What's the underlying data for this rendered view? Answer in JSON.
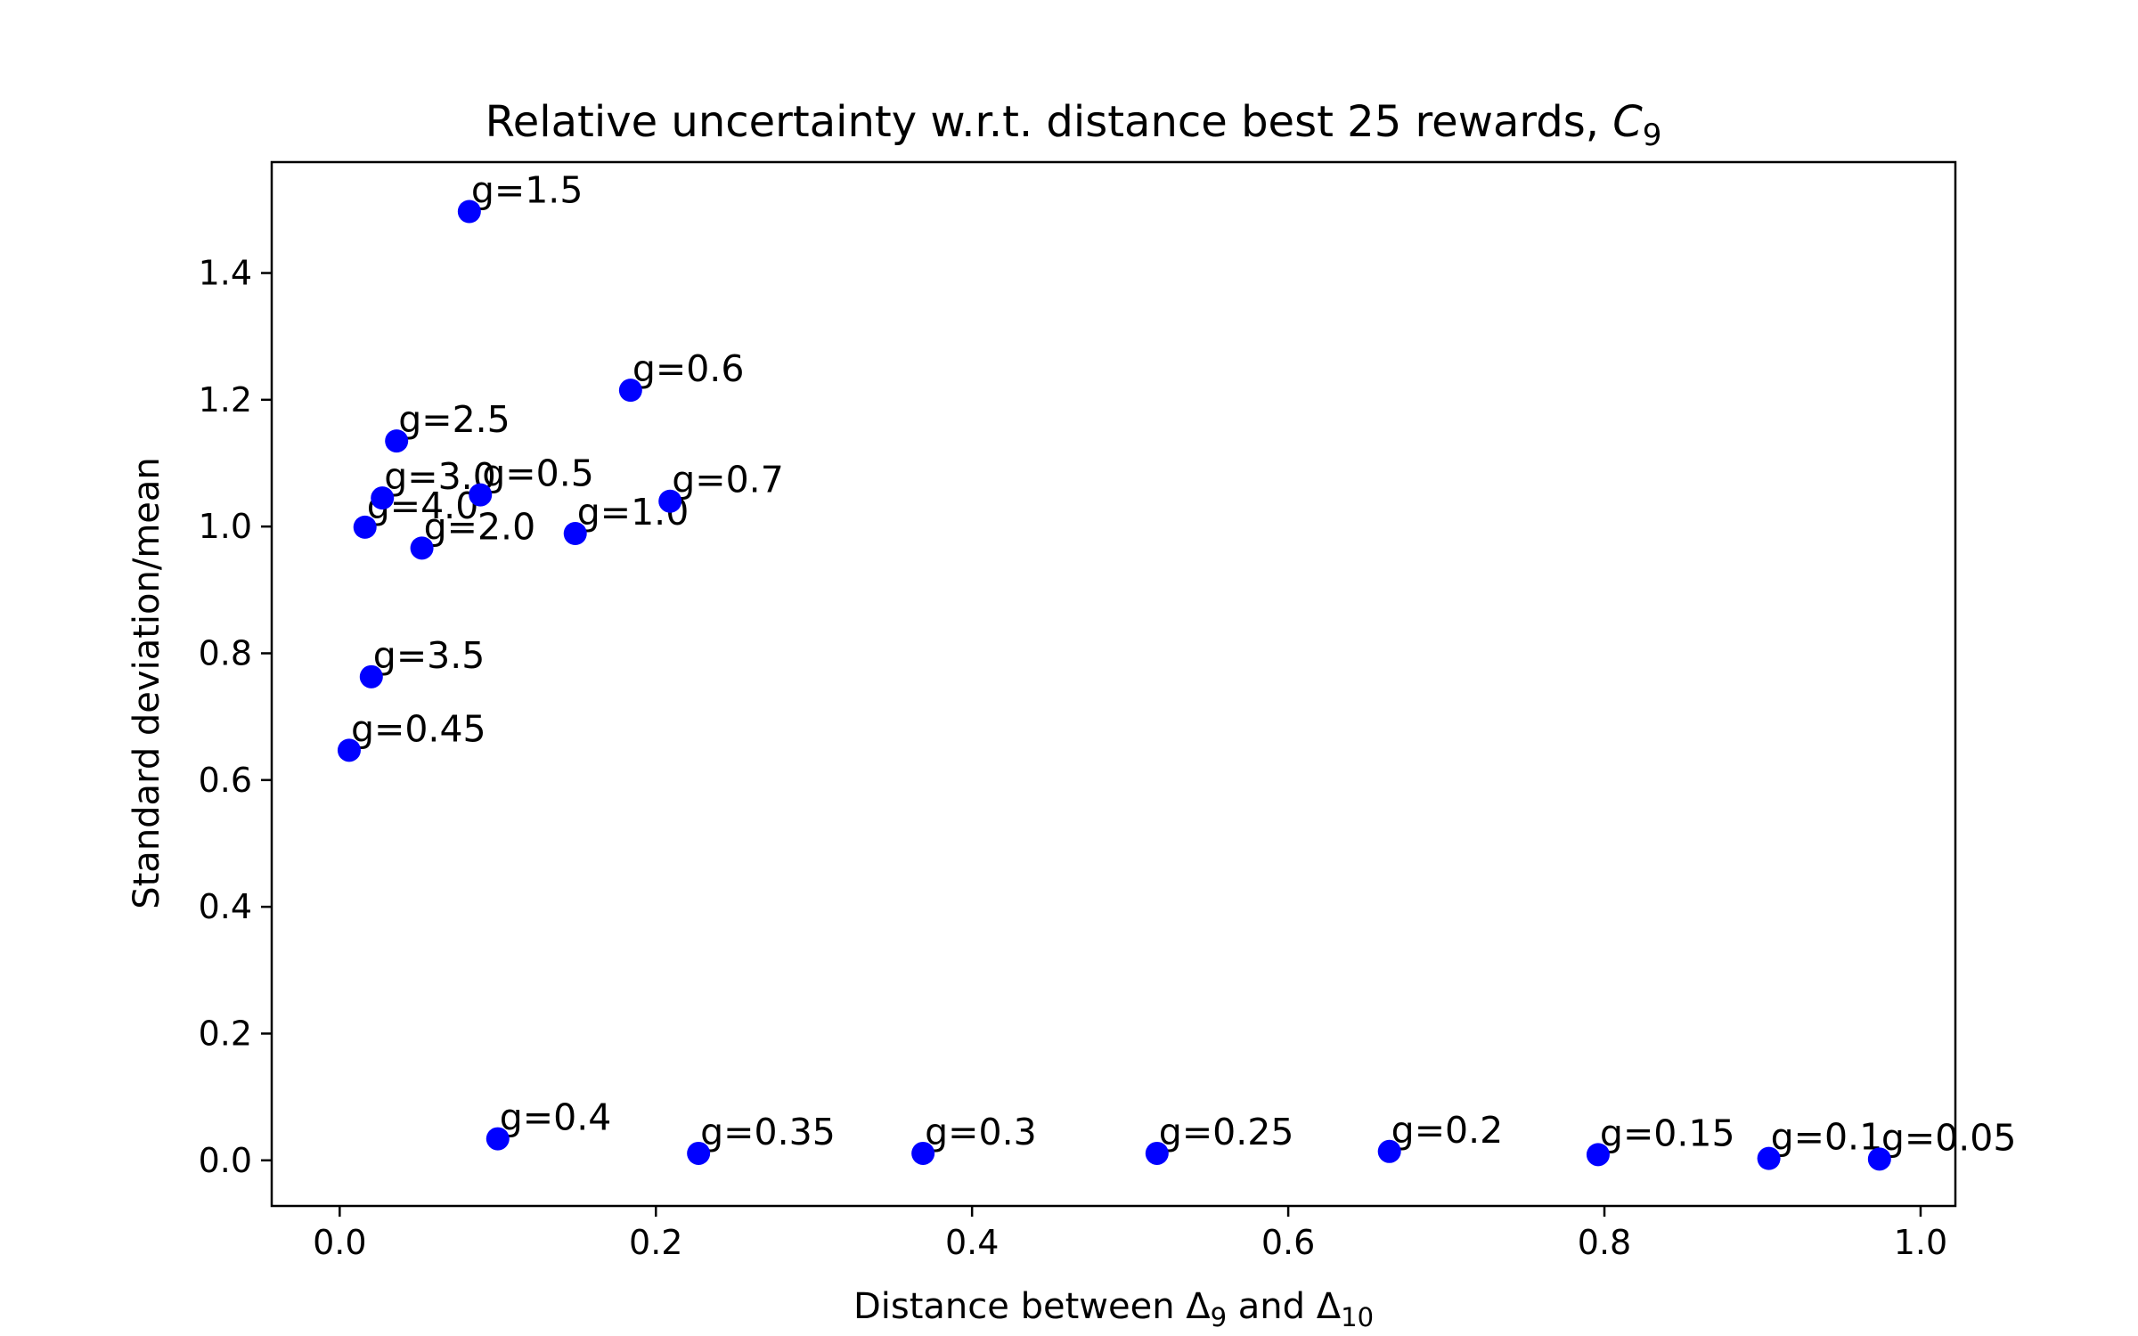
{
  "chart_data": {
    "type": "scatter",
    "title": {
      "main": "Relative uncertainty w.r.t. distance best 25 rewards, ",
      "var": "C",
      "sub": "9"
    },
    "xlabel": {
      "pre": "Distance between Δ",
      "sub1": "9",
      "mid": " and Δ",
      "sub2": "10"
    },
    "ylabel": "Standard deviation/mean",
    "xlim": [
      -0.043,
      1.022
    ],
    "ylim": [
      -0.072,
      1.575
    ],
    "xticks": [
      0.0,
      0.2,
      0.4,
      0.6,
      0.8,
      1.0
    ],
    "xtick_labels": [
      "0.0",
      "0.2",
      "0.4",
      "0.6",
      "0.8",
      "1.0"
    ],
    "yticks": [
      0.0,
      0.2,
      0.4,
      0.6,
      0.8,
      1.0,
      1.2,
      1.4
    ],
    "ytick_labels": [
      "0.0",
      "0.2",
      "0.4",
      "0.6",
      "0.8",
      "1.0",
      "1.2",
      "1.4"
    ],
    "grid": false,
    "marker_color": "#0000ff",
    "points": [
      {
        "label": "g=1.5",
        "x": 0.082,
        "y": 1.497
      },
      {
        "label": "g=0.6",
        "x": 0.184,
        "y": 1.215
      },
      {
        "label": "g=2.5",
        "x": 0.036,
        "y": 1.135
      },
      {
        "label": "g=3.0",
        "x": 0.027,
        "y": 1.045
      },
      {
        "label": "g=0.5",
        "x": 0.089,
        "y": 1.05
      },
      {
        "label": "g=0.7",
        "x": 0.209,
        "y": 1.04
      },
      {
        "label": "g=4.0",
        "x": 0.016,
        "y": 0.999
      },
      {
        "label": "g=1.0",
        "x": 0.149,
        "y": 0.989
      },
      {
        "label": "g=2.0",
        "x": 0.052,
        "y": 0.966
      },
      {
        "label": "g=3.5",
        "x": 0.02,
        "y": 0.763
      },
      {
        "label": "g=0.45",
        "x": 0.006,
        "y": 0.647
      },
      {
        "label": "g=0.4",
        "x": 0.1,
        "y": 0.034
      },
      {
        "label": "g=0.35",
        "x": 0.227,
        "y": 0.011
      },
      {
        "label": "g=0.3",
        "x": 0.369,
        "y": 0.011
      },
      {
        "label": "g=0.25",
        "x": 0.517,
        "y": 0.011
      },
      {
        "label": "g=0.2",
        "x": 0.664,
        "y": 0.014
      },
      {
        "label": "g=0.15",
        "x": 0.796,
        "y": 0.009
      },
      {
        "label": "g=0.1",
        "x": 0.904,
        "y": 0.003
      },
      {
        "label": "g=0.05",
        "x": 0.974,
        "y": 0.002
      }
    ]
  }
}
